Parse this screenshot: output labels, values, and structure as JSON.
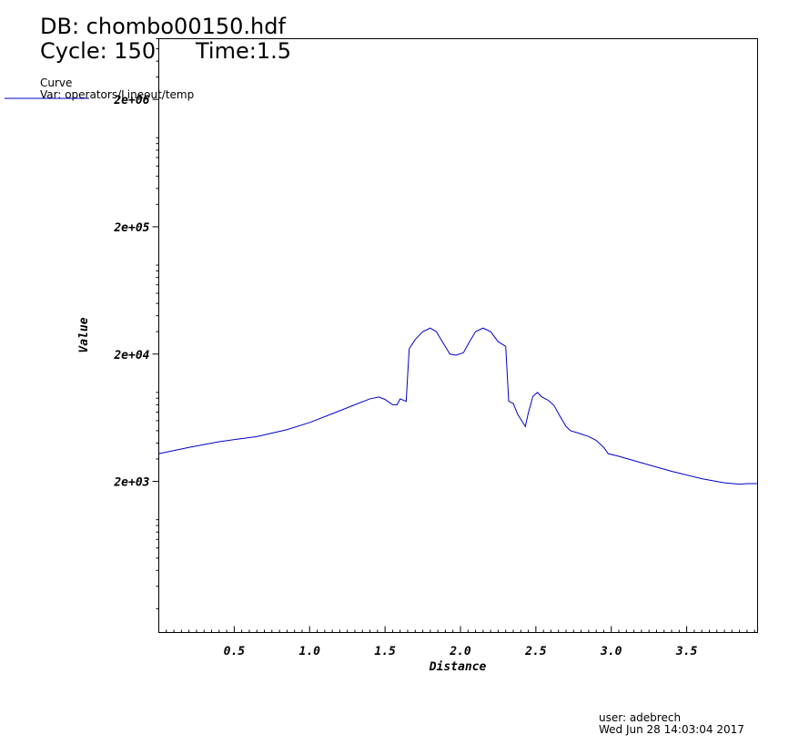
{
  "header": {
    "db": "DB: chombo00150.hdf",
    "cycle": "Cycle: 150",
    "time": "Time:1.5"
  },
  "legend": {
    "title": "Curve",
    "var": "Var: operators/Lineout/temp"
  },
  "footer": {
    "user": "user: adebrech",
    "date": "Wed Jun 28 14:03:04 2017"
  },
  "colors": {
    "curve": "#0000cc",
    "axis": "#000000"
  },
  "chart_data": {
    "type": "line",
    "xlabel": "Distance",
    "ylabel": "Value",
    "xlim": [
      0.0,
      3.97
    ],
    "ylim": [
      130,
      6000000
    ],
    "yscale": "log",
    "xticks": [
      0.5,
      1.0,
      1.5,
      2.0,
      2.5,
      3.0,
      3.5
    ],
    "xtick_labels": [
      "0.5",
      "1.0",
      "1.5",
      "2.0",
      "2.5",
      "3.0",
      "3.5"
    ],
    "yticks": [
      2000,
      20000,
      200000,
      2000000
    ],
    "ytick_labels": [
      "2e+03",
      "2e+04",
      "2e+05",
      "2e+06"
    ],
    "legend_position": "top-left",
    "grid": false,
    "series": [
      {
        "name": "",
        "x": [
          0.0,
          0.2,
          0.4,
          0.65,
          0.85,
          1.0,
          1.15,
          1.3,
          1.4,
          1.46,
          1.5,
          1.55,
          1.58,
          1.6,
          1.62,
          1.64,
          1.66,
          1.7,
          1.75,
          1.8,
          1.84,
          1.88,
          1.93,
          1.97,
          2.02,
          2.06,
          2.1,
          2.15,
          2.2,
          2.25,
          2.3,
          2.32,
          2.35,
          2.38,
          2.43,
          2.45,
          2.48,
          2.51,
          2.54,
          2.58,
          2.62,
          2.66,
          2.7,
          2.73,
          2.78,
          2.85,
          2.9,
          2.95,
          2.98,
          3.05,
          3.2,
          3.4,
          3.6,
          3.75,
          3.85,
          3.9,
          3.97
        ],
        "y": [
          3300,
          3700,
          4100,
          4500,
          5100,
          5800,
          6800,
          8000,
          8900,
          9200,
          8800,
          8000,
          8000,
          8900,
          8700,
          8500,
          22000,
          26000,
          30000,
          32000,
          30000,
          25000,
          20000,
          19600,
          20500,
          25000,
          30000,
          32000,
          30000,
          25000,
          23000,
          8500,
          8200,
          6700,
          5400,
          6900,
          9300,
          10000,
          9200,
          8700,
          7900,
          6500,
          5400,
          5000,
          4800,
          4500,
          4200,
          3700,
          3300,
          3150,
          2800,
          2400,
          2100,
          1950,
          1900,
          1920,
          1920
        ]
      }
    ]
  }
}
